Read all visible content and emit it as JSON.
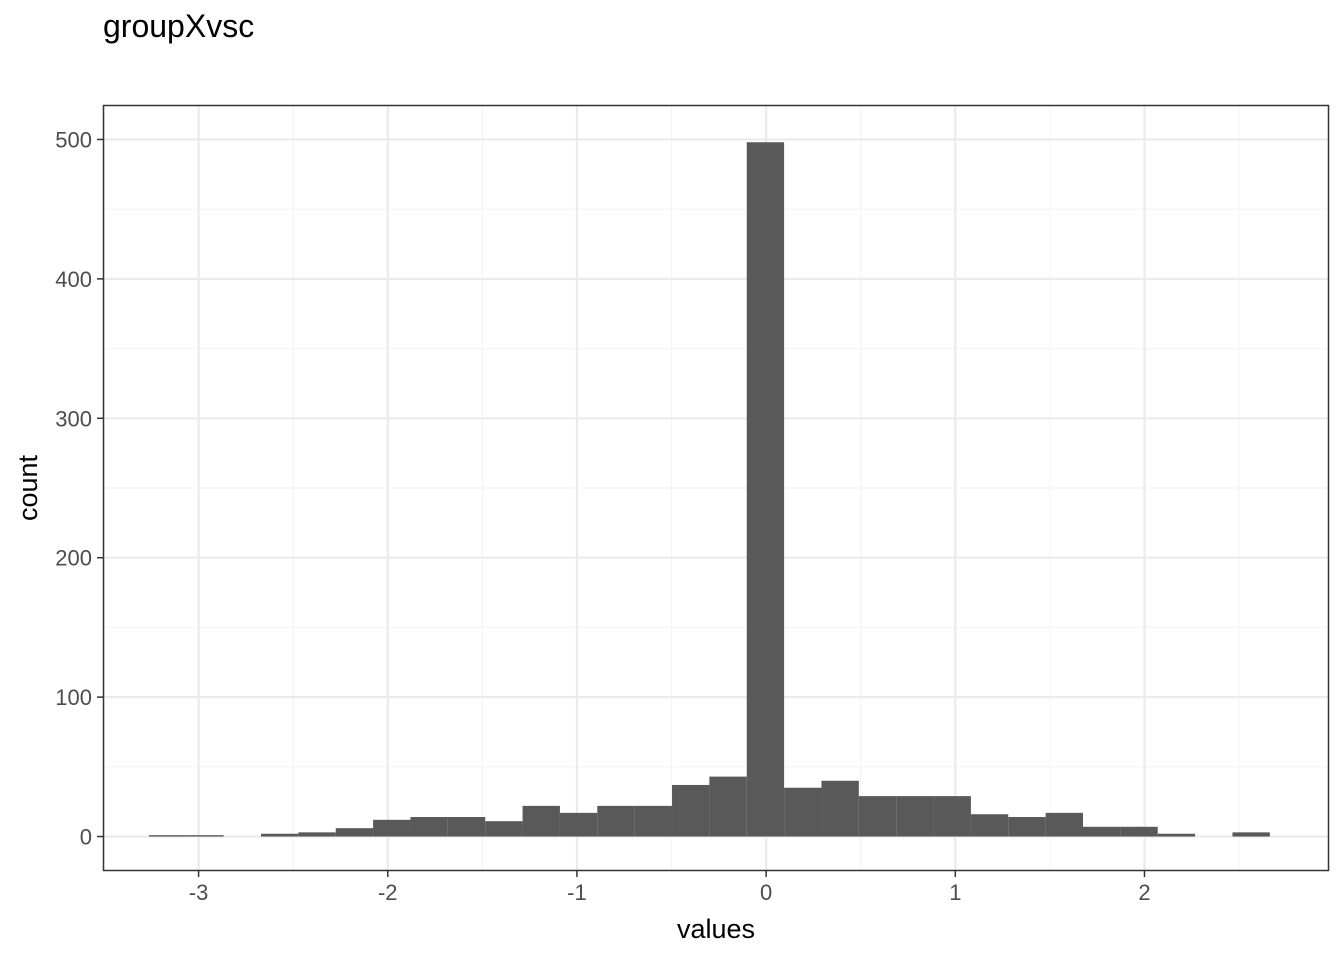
{
  "chart_data": {
    "type": "bar",
    "title": "groupXvsc",
    "xlabel": "values",
    "ylabel": "count",
    "xlim": [
      -3.5,
      2.97
    ],
    "ylim": [
      -24,
      524
    ],
    "x_ticks": [
      -3,
      -2,
      -1,
      0,
      1,
      2
    ],
    "y_ticks": [
      0,
      100,
      200,
      300,
      400,
      500
    ],
    "grid": true,
    "bin_width": 0.1975,
    "bins": [
      {
        "x0": -3.2625,
        "x1": -3.065,
        "count": 1
      },
      {
        "x0": -3.065,
        "x1": -2.8675,
        "count": 1
      },
      {
        "x0": -2.8675,
        "x1": -2.67,
        "count": 0
      },
      {
        "x0": -2.67,
        "x1": -2.4725,
        "count": 2
      },
      {
        "x0": -2.4725,
        "x1": -2.275,
        "count": 3
      },
      {
        "x0": -2.275,
        "x1": -2.0775,
        "count": 6
      },
      {
        "x0": -2.0775,
        "x1": -1.88,
        "count": 12
      },
      {
        "x0": -1.88,
        "x1": -1.6825,
        "count": 14
      },
      {
        "x0": -1.6825,
        "x1": -1.485,
        "count": 14
      },
      {
        "x0": -1.485,
        "x1": -1.2875,
        "count": 11
      },
      {
        "x0": -1.2875,
        "x1": -1.09,
        "count": 22
      },
      {
        "x0": -1.09,
        "x1": -0.8925,
        "count": 17
      },
      {
        "x0": -0.8925,
        "x1": -0.695,
        "count": 22
      },
      {
        "x0": -0.695,
        "x1": -0.4975,
        "count": 22
      },
      {
        "x0": -0.4975,
        "x1": -0.3,
        "count": 37
      },
      {
        "x0": -0.3,
        "x1": -0.1025,
        "count": 43
      },
      {
        "x0": -0.1025,
        "x1": 0.095,
        "count": 498
      },
      {
        "x0": 0.095,
        "x1": 0.2925,
        "count": 35
      },
      {
        "x0": 0.2925,
        "x1": 0.49,
        "count": 40
      },
      {
        "x0": 0.49,
        "x1": 0.6875,
        "count": 29
      },
      {
        "x0": 0.6875,
        "x1": 0.885,
        "count": 29
      },
      {
        "x0": 0.885,
        "x1": 1.0825,
        "count": 29
      },
      {
        "x0": 1.0825,
        "x1": 1.28,
        "count": 16
      },
      {
        "x0": 1.28,
        "x1": 1.4775,
        "count": 14
      },
      {
        "x0": 1.4775,
        "x1": 1.675,
        "count": 17
      },
      {
        "x0": 1.675,
        "x1": 1.8725,
        "count": 7
      },
      {
        "x0": 1.8725,
        "x1": 2.07,
        "count": 7
      },
      {
        "x0": 2.07,
        "x1": 2.2675,
        "count": 2
      },
      {
        "x0": 2.2675,
        "x1": 2.465,
        "count": 0
      },
      {
        "x0": 2.465,
        "x1": 2.6625,
        "count": 3
      }
    ],
    "colors": {
      "bar": "#595959",
      "grid_major": "#ebebeb",
      "grid_minor": "#f4f4f4",
      "panel_border": "#333333"
    }
  }
}
